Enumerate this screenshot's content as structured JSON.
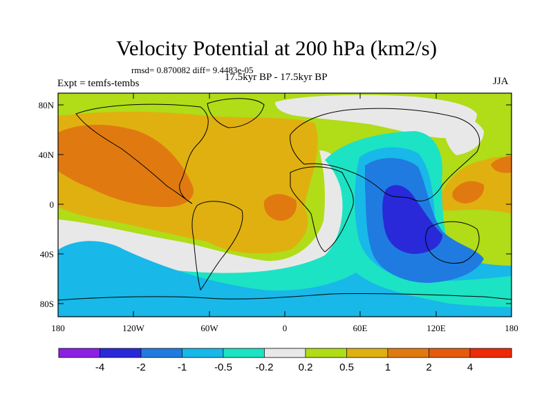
{
  "title": "Velocity Potential at 200 hPa (km2/s)",
  "stats": "rmsd= 0.870082 diff= 9.4483e-05",
  "period": "17.5kyr BP - 17.5kyr BP",
  "experiment": "Expt = temfs-tembs",
  "season": "JJA",
  "lon_ticks": [
    "180",
    "120W",
    "60W",
    "0",
    "60E",
    "120E",
    "180"
  ],
  "lat_ticks": [
    "80N",
    "40N",
    "0",
    "40S",
    "80S"
  ],
  "colorbar": {
    "colors": [
      "#8c1fe6",
      "#2929d9",
      "#1f7be0",
      "#18b8e8",
      "#1ce3c3",
      "#e8e8e8",
      "#b0dc18",
      "#e0b010",
      "#e07a10",
      "#e55a0d",
      "#ee2a08"
    ],
    "labels": [
      "-4",
      "-2",
      "-1",
      "-0.5",
      "-0.2",
      "0.2",
      "0.5",
      "1",
      "2",
      "4"
    ]
  }
}
